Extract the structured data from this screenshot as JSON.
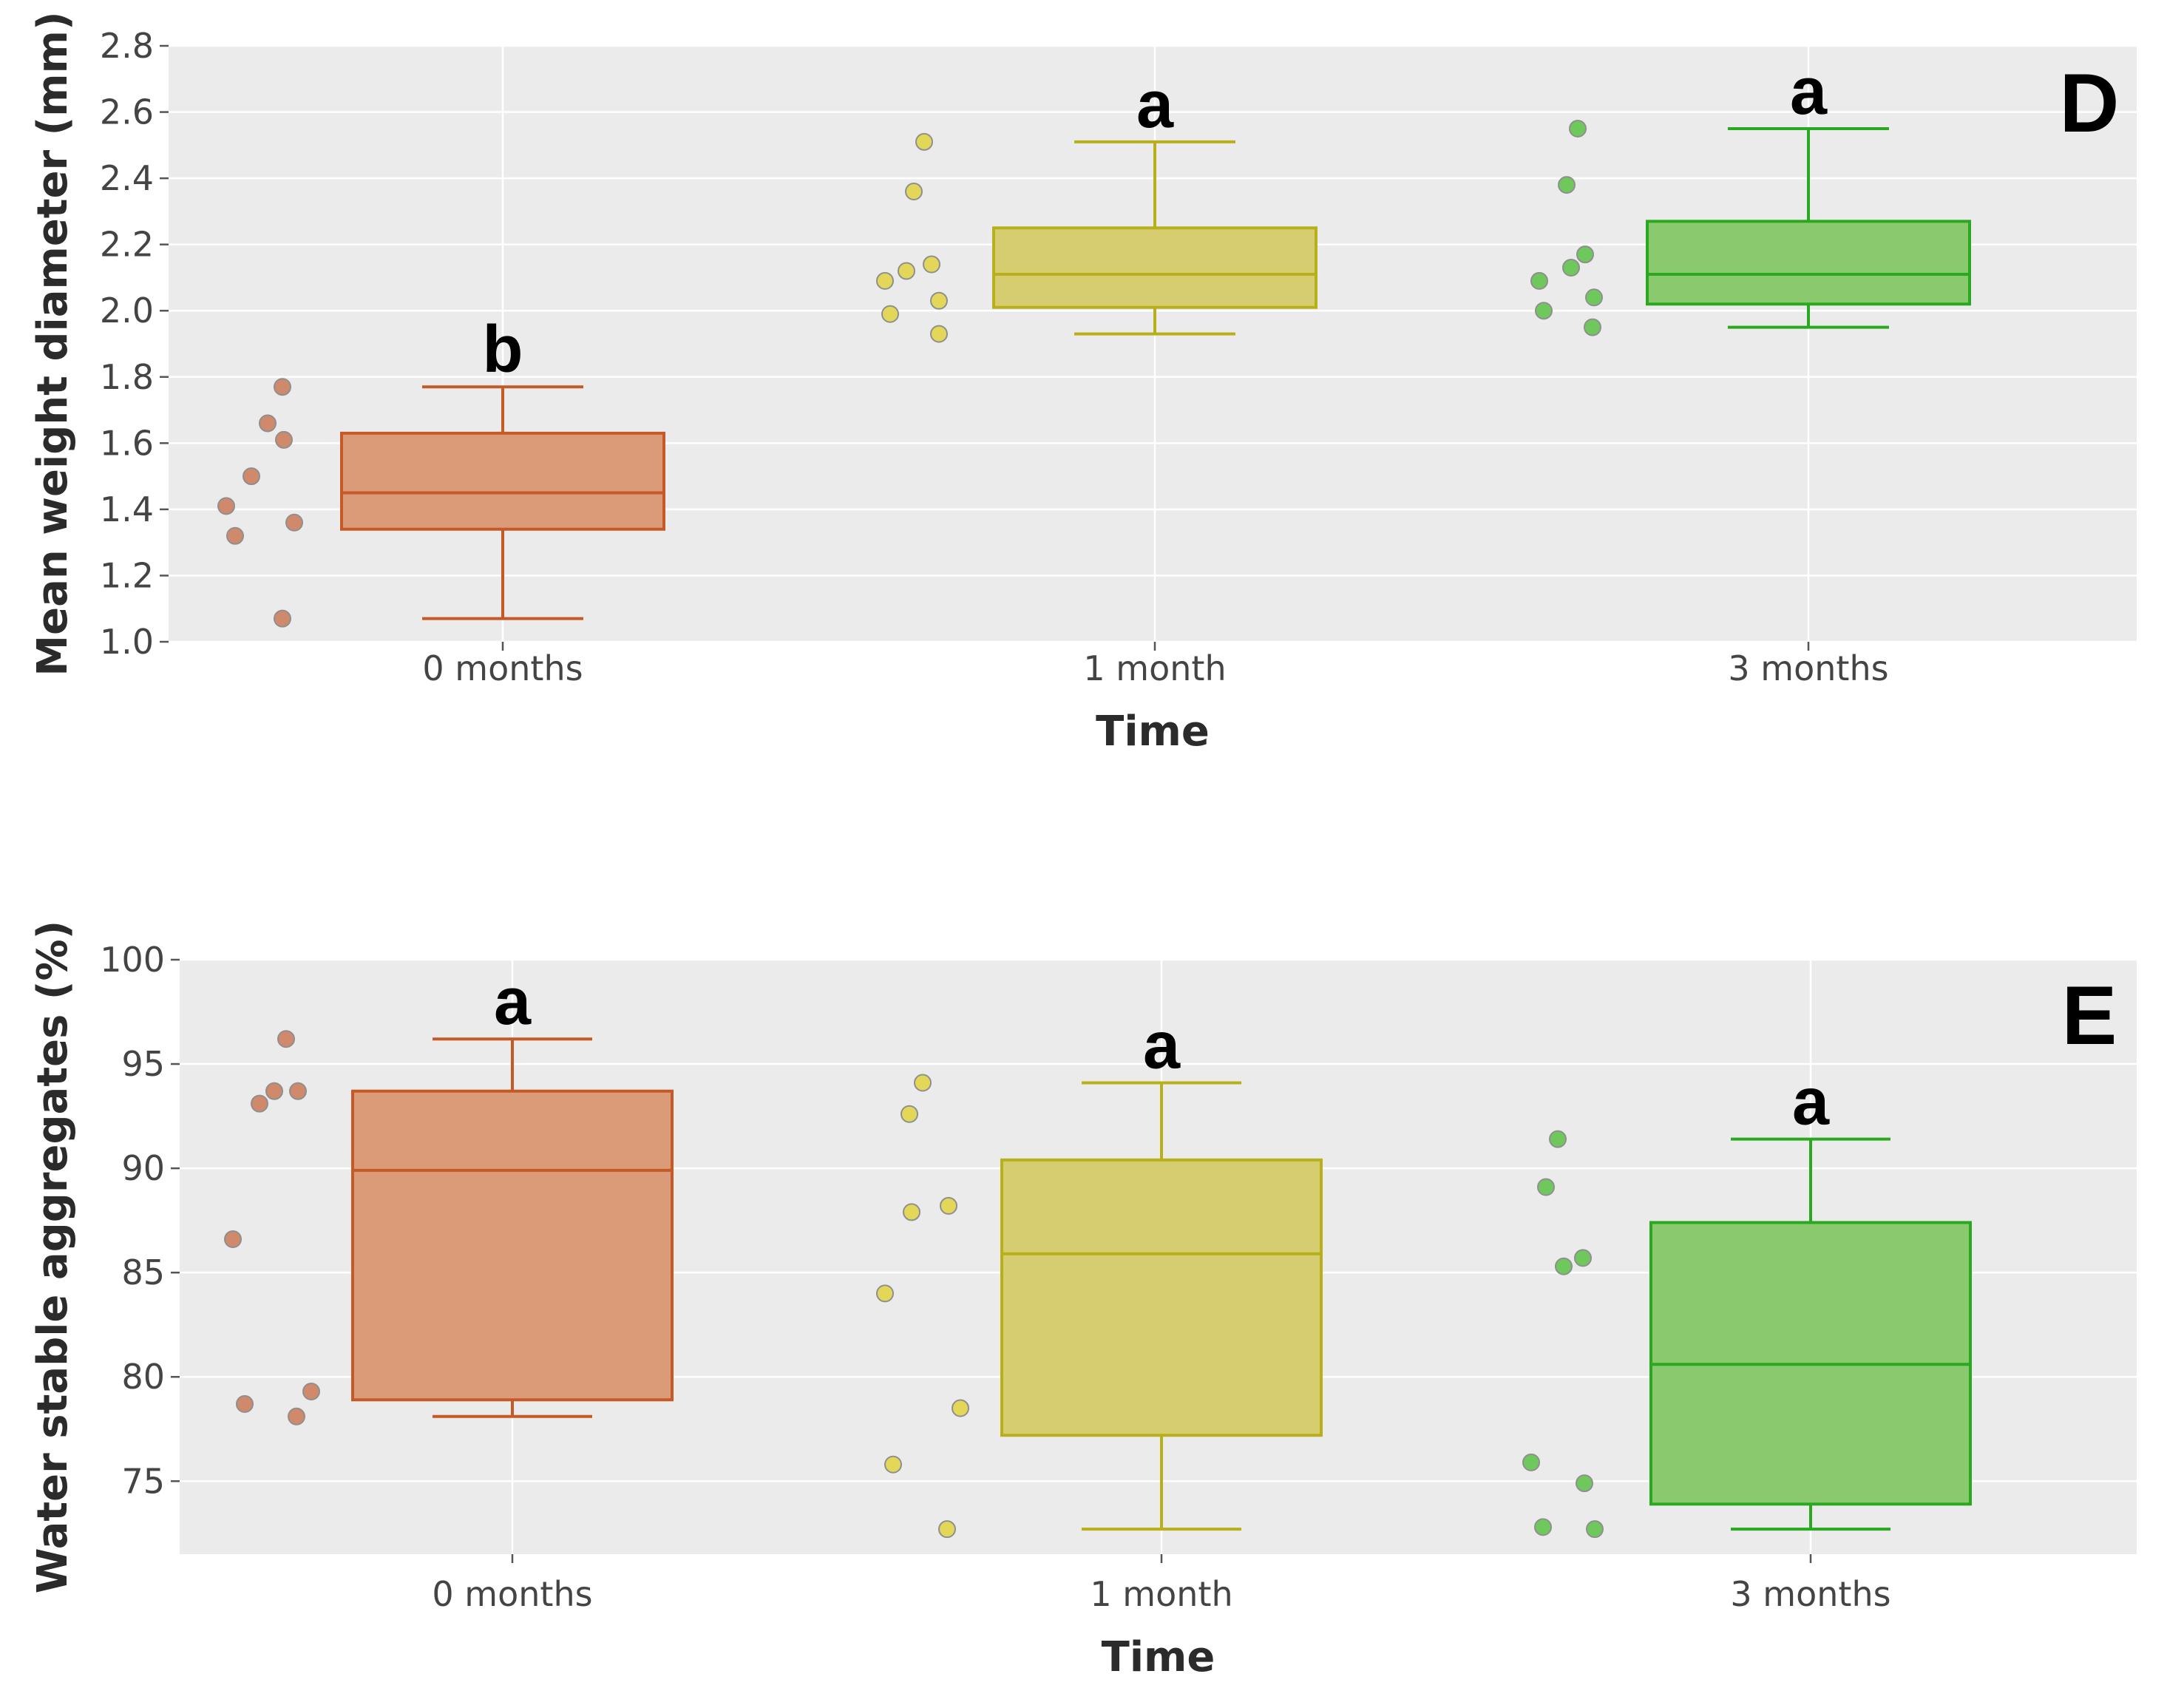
{
  "chart_data": [
    {
      "type": "box",
      "panel_label": "D",
      "xlabel": "Time",
      "ylabel": "Mean weight diameter (mm)",
      "ylim": [
        1.0,
        2.8
      ],
      "yticks": [
        "1.0",
        "1.2",
        "1.4",
        "1.6",
        "1.8",
        "2.0",
        "2.2",
        "2.4",
        "2.6",
        "2.8"
      ],
      "ytick_values": [
        1.0,
        1.2,
        1.4,
        1.6,
        1.8,
        2.0,
        2.2,
        2.4,
        2.6,
        2.8
      ],
      "grid": true,
      "categories": [
        "0 months",
        "1 month",
        "3 months"
      ],
      "colors": [
        "#c55a26",
        "#b8b01a",
        "#2aa81f"
      ],
      "fills": [
        "#db9a78",
        "#d5cd6f",
        "#8bc96f"
      ],
      "point_fills": [
        "#d0896a",
        "#e3d75a",
        "#6fc85c"
      ],
      "boxes": [
        {
          "category": "0 months",
          "min": 1.07,
          "q1": 1.34,
          "median": 1.45,
          "q3": 1.63,
          "max": 1.77,
          "letter": "b"
        },
        {
          "category": "1 month",
          "min": 1.93,
          "q1": 2.01,
          "median": 2.11,
          "q3": 2.25,
          "max": 2.51,
          "letter": "a"
        },
        {
          "category": "3 months",
          "min": 1.95,
          "q1": 2.02,
          "median": 2.11,
          "q3": 2.27,
          "max": 2.55,
          "letter": "a"
        }
      ],
      "points": [
        {
          "category": "0 months",
          "values": [
            1.77,
            1.66,
            1.61,
            1.5,
            1.41,
            1.36,
            1.32,
            1.07
          ]
        },
        {
          "category": "1 month",
          "values": [
            2.51,
            2.36,
            2.14,
            2.12,
            2.09,
            2.03,
            1.99,
            1.93
          ]
        },
        {
          "category": "3 months",
          "values": [
            2.55,
            2.38,
            2.17,
            2.13,
            2.09,
            2.04,
            2.0,
            1.95
          ]
        }
      ]
    },
    {
      "type": "box",
      "panel_label": "E",
      "xlabel": "Time",
      "ylabel": "Water stable aggregates (%)",
      "ylim": [
        71.5,
        100
      ],
      "yticks": [
        "75",
        "80",
        "85",
        "90",
        "95",
        "100"
      ],
      "ytick_values": [
        75,
        80,
        85,
        90,
        95,
        100
      ],
      "grid": true,
      "categories": [
        "0 months",
        "1 month",
        "3 months"
      ],
      "colors": [
        "#c55a26",
        "#b8b01a",
        "#2aa81f"
      ],
      "fills": [
        "#db9a78",
        "#d5cd6f",
        "#8bc96f"
      ],
      "point_fills": [
        "#d0896a",
        "#e3d75a",
        "#6fc85c"
      ],
      "boxes": [
        {
          "category": "0 months",
          "min": 78.1,
          "q1": 78.9,
          "median": 89.9,
          "q3": 93.7,
          "max": 96.2,
          "letter": "a"
        },
        {
          "category": "1 month",
          "min": 72.7,
          "q1": 77.2,
          "median": 85.9,
          "q3": 90.4,
          "max": 94.1,
          "letter": "a"
        },
        {
          "category": "3 months",
          "min": 72.7,
          "q1": 73.9,
          "median": 80.6,
          "q3": 87.4,
          "max": 91.4,
          "letter": "a"
        }
      ],
      "points": [
        {
          "category": "0 months",
          "values": [
            96.2,
            93.7,
            93.7,
            93.1,
            86.6,
            79.3,
            78.7,
            78.1
          ]
        },
        {
          "category": "1 month",
          "values": [
            94.1,
            92.6,
            88.2,
            87.9,
            84.0,
            78.5,
            75.8,
            72.7
          ]
        },
        {
          "category": "3 months",
          "values": [
            91.4,
            89.1,
            85.7,
            85.3,
            75.9,
            74.9,
            72.8,
            72.7
          ]
        }
      ]
    }
  ]
}
